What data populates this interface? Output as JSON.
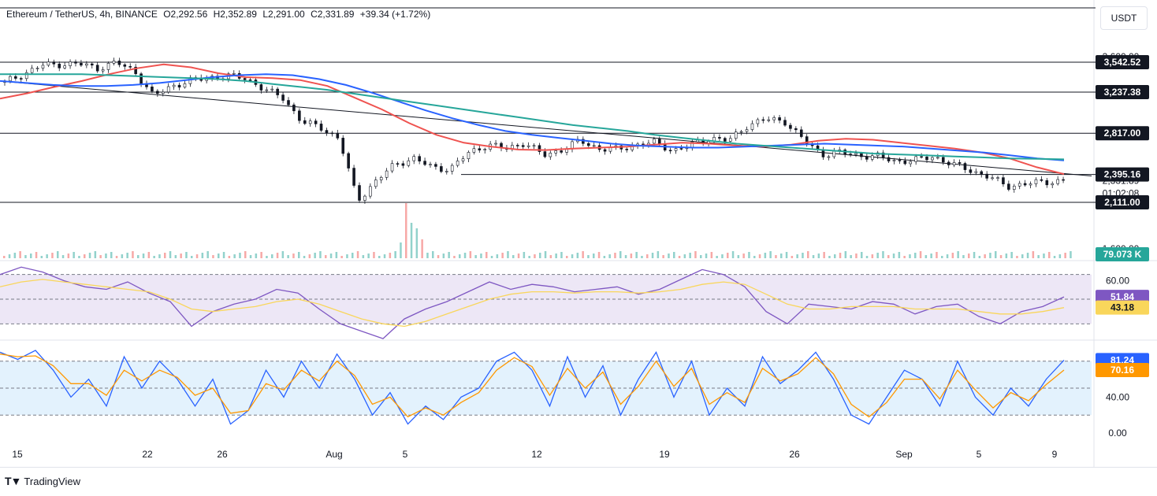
{
  "header": {
    "symbol": "Ethereum / TetherUS, 4h, BINANCE",
    "open": "O2,292.56",
    "high": "H2,352.89",
    "low": "L2,291.00",
    "close": "C2,331.89",
    "change": "+39.34 (+1.72%)"
  },
  "currency_button": "USDT",
  "branding": "TradingView",
  "chart_data": [
    {
      "type": "line",
      "title": "",
      "note": "Candlestick price panel, approximated by close path",
      "x_tick_labels": [
        "15",
        "22",
        "26",
        "Aug",
        "5",
        "12",
        "19",
        "26",
        "Sep",
        "5",
        "9"
      ],
      "horizontal_levels": [
        "3,542.52",
        "3,237.38",
        "2,817.00",
        "2,395.16",
        "2,111.00"
      ],
      "current_price": "2,331.89",
      "countdown": "01:02:08",
      "axis_partial_labels": [
        "3,600.00",
        "1,600.00"
      ],
      "volume_label": "79.073 K",
      "ylim": [
        1600,
        3650
      ],
      "price_series": [
        3337,
        3422,
        3511,
        3522,
        3526,
        3481,
        3540,
        3450,
        3196,
        3300,
        3352,
        3388,
        3401,
        3380,
        3260,
        3180,
        2930,
        2880,
        2760,
        2130,
        2330,
        2500,
        2560,
        2470,
        2450,
        2620,
        2700,
        2660,
        2720,
        2590,
        2650,
        2740,
        2660,
        2650,
        2700,
        2720,
        2640,
        2700,
        2770,
        2740,
        2900,
        2960,
        2940,
        2750,
        2600,
        2620,
        2590,
        2580,
        2530,
        2540,
        2580,
        2500,
        2440,
        2370,
        2275,
        2300,
        2320,
        2332
      ],
      "series": [
        {
          "name": "",
          "color": "#ef5350",
          "values": [
            3170,
            3225,
            3290,
            3350,
            3420,
            3480,
            3520,
            3490,
            3430,
            3390,
            3380,
            3360,
            3300,
            3180,
            3060,
            2920,
            2800,
            2720,
            2680,
            2650,
            2645,
            2660,
            2670,
            2680,
            2700,
            2720,
            2710,
            2690,
            2680,
            2700,
            2740,
            2760,
            2750,
            2720,
            2690,
            2660,
            2620,
            2560,
            2470,
            2400
          ]
        },
        {
          "name": "",
          "color": "#2962ff",
          "values": [
            3350,
            3330,
            3310,
            3300,
            3300,
            3310,
            3330,
            3360,
            3390,
            3410,
            3420,
            3410,
            3370,
            3310,
            3230,
            3140,
            3050,
            2970,
            2900,
            2840,
            2800,
            2770,
            2740,
            2710,
            2690,
            2680,
            2670,
            2670,
            2680,
            2690,
            2700,
            2710,
            2700,
            2690,
            2680,
            2660,
            2640,
            2620,
            2590,
            2560,
            2540
          ]
        },
        {
          "name": "",
          "color": "#26a69a",
          "values": [
            3420,
            3420,
            3420,
            3420,
            3410,
            3400,
            3390,
            3380,
            3370,
            3350,
            3320,
            3290,
            3260,
            3220,
            3180,
            3140,
            3100,
            3060,
            3020,
            2980,
            2940,
            2900,
            2870,
            2840,
            2800,
            2770,
            2740,
            2710,
            2690,
            2670,
            2650,
            2630,
            2610,
            2600,
            2590,
            2580,
            2570,
            2560,
            2555,
            2550
          ]
        }
      ]
    },
    {
      "type": "line",
      "title": "",
      "ylim": [
        20,
        80
      ],
      "levels": [
        70,
        50,
        30
      ],
      "y_tick_labels": [
        "60.00"
      ],
      "series": [
        {
          "name": "",
          "color": "#7e57c2",
          "last": "51.84",
          "values": [
            70,
            76,
            72,
            65,
            60,
            58,
            64,
            55,
            48,
            28,
            40,
            46,
            50,
            58,
            55,
            42,
            30,
            24,
            18,
            34,
            42,
            48,
            56,
            64,
            58,
            62,
            60,
            56,
            58,
            60,
            54,
            58,
            66,
            74,
            70,
            60,
            40,
            30,
            46,
            44,
            42,
            48,
            46,
            38,
            44,
            46,
            36,
            30,
            40,
            44,
            51.84
          ]
        },
        {
          "name": "",
          "color": "#f9d65b",
          "last": "43.18",
          "values": [
            60,
            64,
            66,
            64,
            62,
            60,
            58,
            56,
            50,
            42,
            40,
            42,
            44,
            48,
            50,
            46,
            40,
            34,
            30,
            28,
            32,
            38,
            44,
            50,
            54,
            56,
            56,
            55,
            56,
            56,
            55,
            56,
            58,
            62,
            64,
            62,
            54,
            46,
            42,
            42,
            44,
            44,
            44,
            42,
            42,
            42,
            40,
            38,
            38,
            40,
            43.18
          ]
        }
      ]
    },
    {
      "type": "line",
      "title": "",
      "ylim": [
        0,
        100
      ],
      "levels": [
        80,
        50,
        20
      ],
      "y_tick_labels": [
        "40.00",
        "0.00"
      ],
      "series": [
        {
          "name": "",
          "color": "#2962ff",
          "last": "81.24",
          "values": [
            90,
            82,
            92,
            70,
            40,
            60,
            30,
            85,
            50,
            80,
            60,
            30,
            60,
            10,
            25,
            70,
            40,
            80,
            50,
            88,
            60,
            20,
            45,
            10,
            30,
            15,
            40,
            50,
            80,
            90,
            70,
            30,
            85,
            40,
            75,
            20,
            60,
            90,
            40,
            80,
            20,
            50,
            30,
            85,
            55,
            70,
            90,
            60,
            20,
            10,
            40,
            70,
            60,
            30,
            80,
            40,
            20,
            50,
            30,
            60,
            81.24
          ]
        },
        {
          "name": "",
          "color": "#ff9800",
          "last": "70.16",
          "values": [
            88,
            85,
            86,
            75,
            55,
            55,
            42,
            70,
            58,
            70,
            62,
            42,
            50,
            22,
            25,
            55,
            48,
            70,
            58,
            80,
            64,
            32,
            40,
            18,
            28,
            20,
            34,
            45,
            70,
            84,
            74,
            42,
            72,
            50,
            68,
            32,
            52,
            80,
            52,
            72,
            32,
            45,
            34,
            72,
            58,
            66,
            84,
            66,
            32,
            18,
            34,
            60,
            60,
            38,
            70,
            48,
            28,
            45,
            36,
            54,
            70.16
          ]
        }
      ]
    }
  ],
  "colors": {
    "up": "#26a69a",
    "down": "#ef5350",
    "rsi_fill": "#ede7f6",
    "stoch_fill": "#e3f2fd"
  }
}
